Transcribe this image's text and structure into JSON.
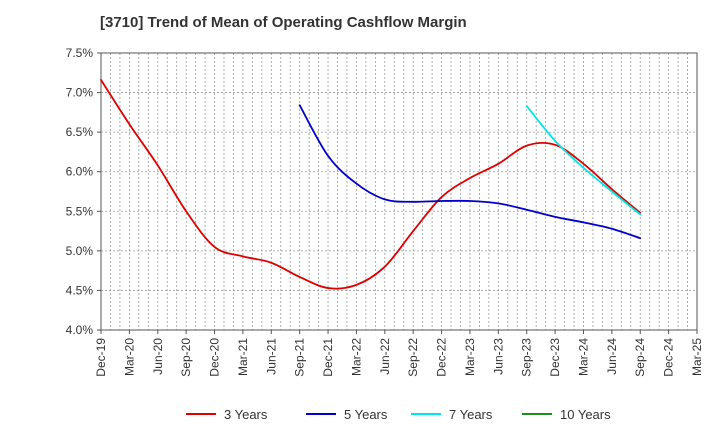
{
  "chart_data": {
    "type": "line",
    "title": "[3710]  Trend of Mean of Operating Cashflow Margin",
    "xlabel": "",
    "ylabel": "",
    "x": [
      "Dec-19",
      "Mar-20",
      "Jun-20",
      "Sep-20",
      "Dec-20",
      "Mar-21",
      "Jun-21",
      "Sep-21",
      "Dec-21",
      "Mar-22",
      "Jun-22",
      "Sep-22",
      "Dec-22",
      "Mar-23",
      "Jun-23",
      "Sep-23",
      "Dec-23",
      "Mar-24",
      "Jun-24",
      "Sep-24",
      "Dec-24",
      "Mar-25"
    ],
    "ylim": [
      4.0,
      7.5
    ],
    "yticks": [
      4.0,
      4.5,
      5.0,
      5.5,
      6.0,
      6.5,
      7.0,
      7.5
    ],
    "ytick_labels": [
      "4.0%",
      "4.5%",
      "5.0%",
      "5.5%",
      "6.0%",
      "6.5%",
      "7.0%",
      "7.5%"
    ],
    "grid": true,
    "legend_position": "bottom",
    "series": [
      {
        "name": "3 Years",
        "color": "#dd0000",
        "values": [
          7.16,
          6.6,
          6.08,
          5.5,
          5.05,
          4.93,
          4.85,
          4.67,
          4.53,
          4.57,
          4.8,
          5.25,
          5.68,
          5.92,
          6.1,
          6.33,
          6.34,
          6.1,
          5.78,
          5.48,
          null,
          null
        ]
      },
      {
        "name": "5 Years",
        "color": "#0000cc",
        "values": [
          null,
          null,
          null,
          null,
          null,
          null,
          null,
          6.84,
          6.2,
          5.85,
          5.65,
          5.62,
          5.63,
          5.63,
          5.6,
          5.52,
          5.43,
          5.36,
          5.28,
          5.16,
          null,
          null
        ]
      },
      {
        "name": "7 Years",
        "color": "#00e5e5",
        "values": [
          null,
          null,
          null,
          null,
          null,
          null,
          null,
          null,
          null,
          null,
          null,
          null,
          null,
          null,
          null,
          6.83,
          6.39,
          6.05,
          5.75,
          5.46,
          null,
          null
        ]
      },
      {
        "name": "10 Years",
        "color": "#228b22",
        "values": [
          null,
          null,
          null,
          null,
          null,
          null,
          null,
          null,
          null,
          null,
          null,
          null,
          null,
          null,
          null,
          null,
          null,
          null,
          null,
          null,
          null,
          null
        ]
      }
    ]
  }
}
